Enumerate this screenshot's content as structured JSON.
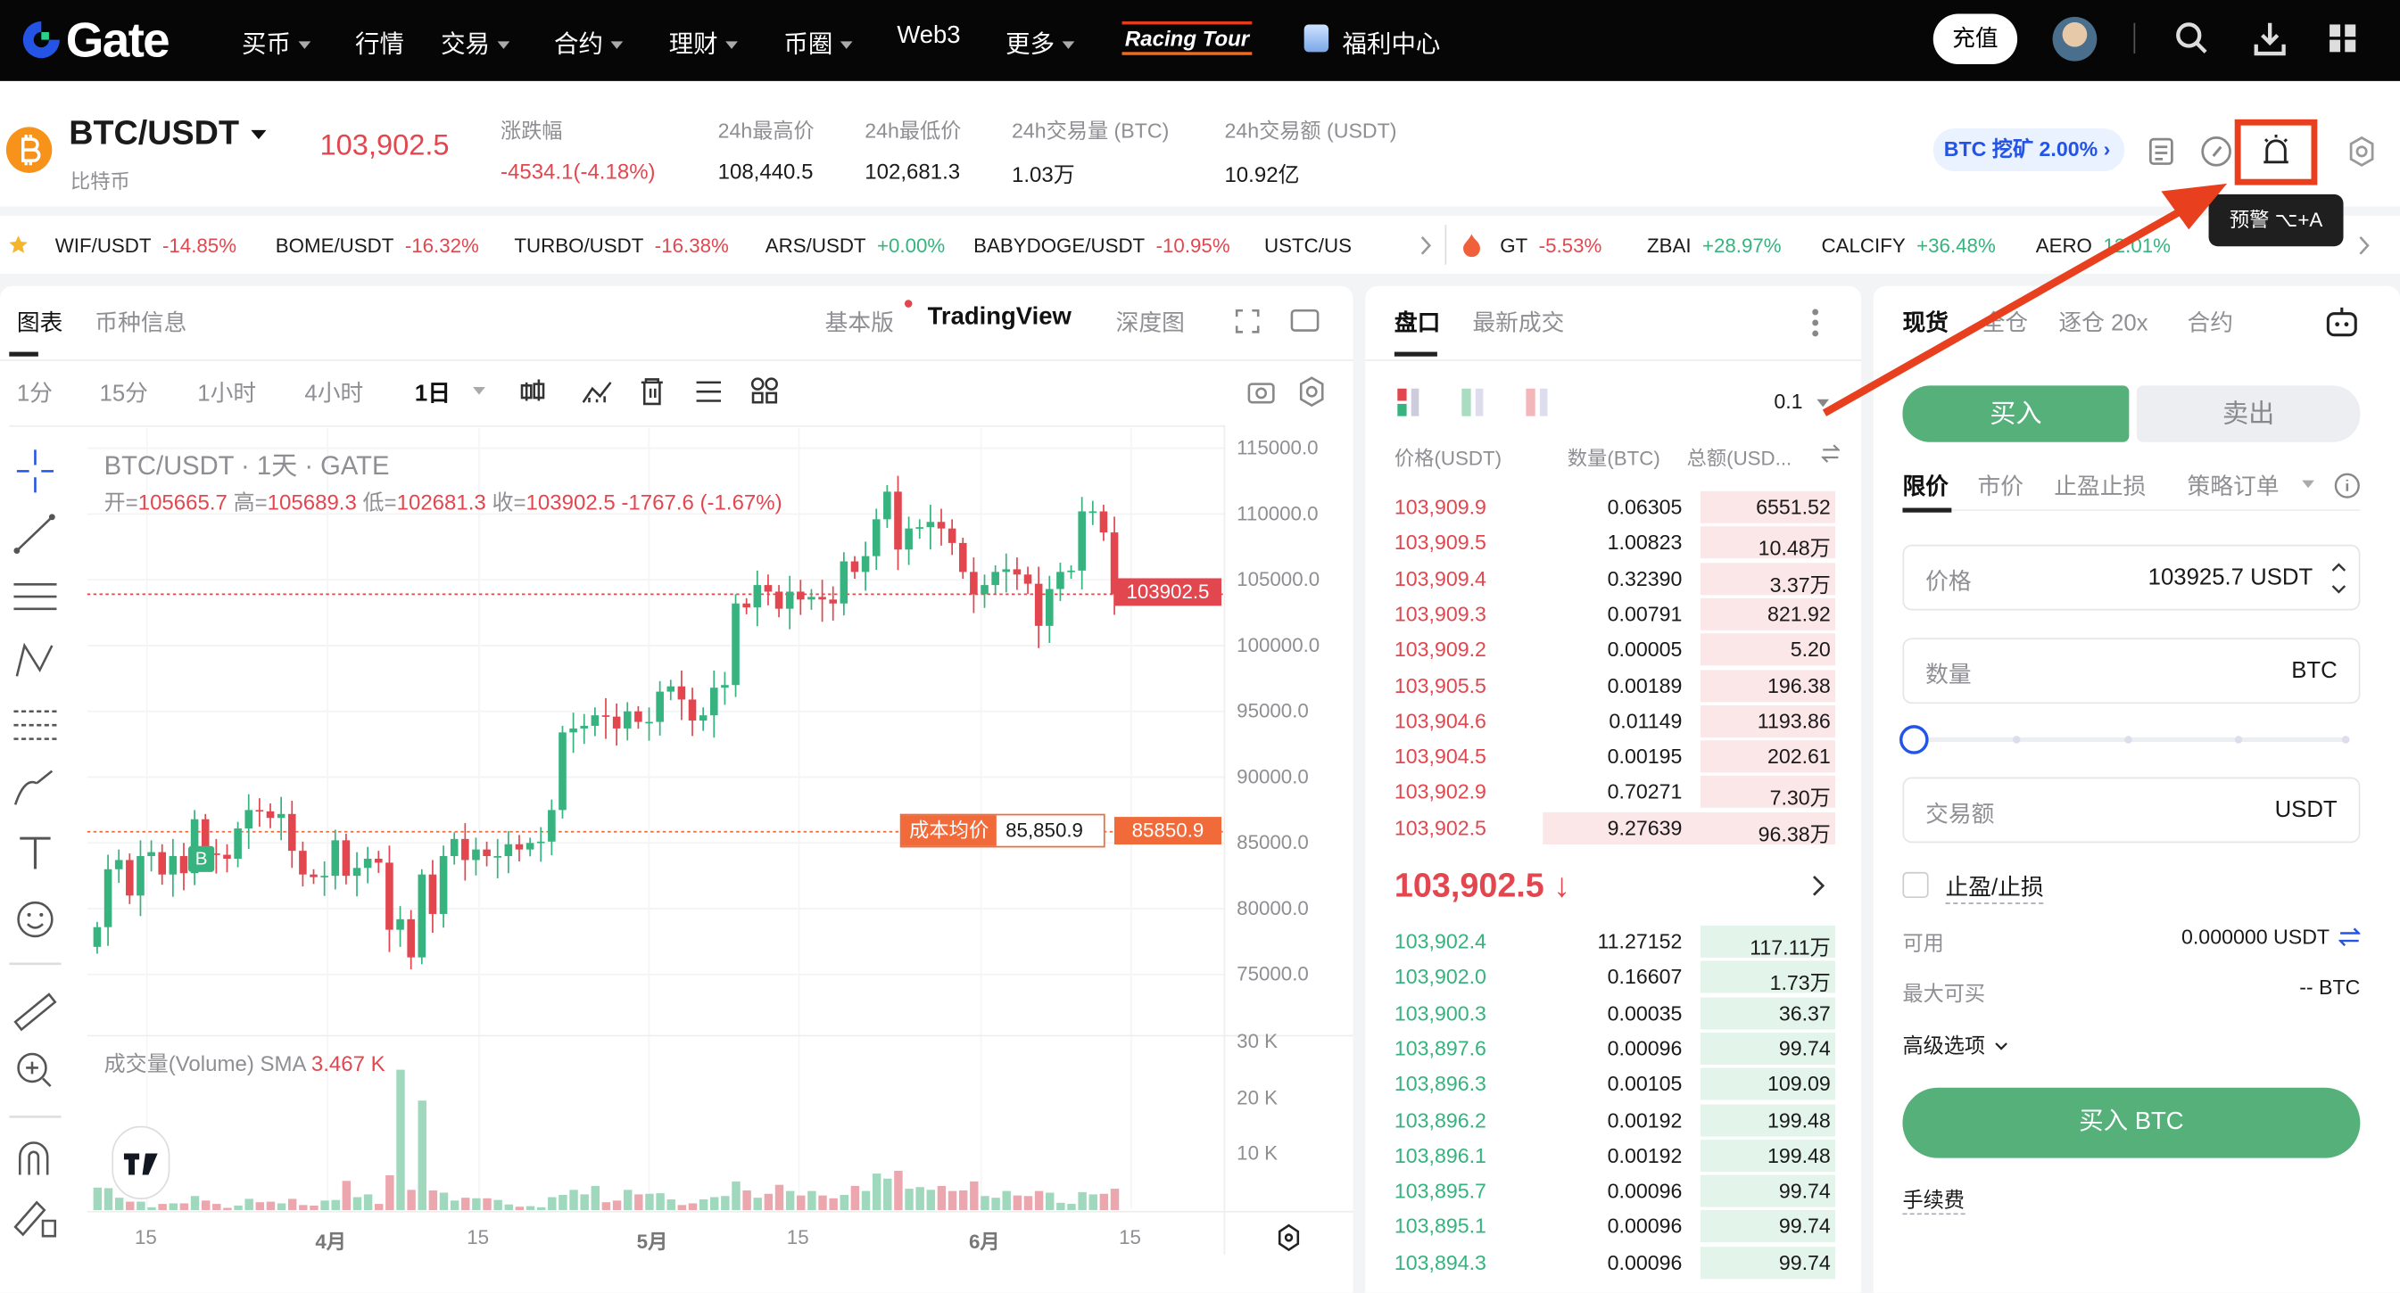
{
  "nav": {
    "logo": "Gate",
    "items": [
      {
        "label": "买币",
        "caret": true
      },
      {
        "label": "行情",
        "caret": false
      },
      {
        "label": "交易",
        "caret": true
      },
      {
        "label": "合约",
        "caret": true
      },
      {
        "label": "理财",
        "caret": true
      },
      {
        "label": "币圈",
        "caret": true
      },
      {
        "label": "Web3",
        "caret": false
      },
      {
        "label": "更多",
        "caret": true
      }
    ],
    "racing": "Racing Tour",
    "welfare": "福利中心",
    "deposit": "充值"
  },
  "ticker": {
    "pair": "BTC/USDT",
    "name": "比特币",
    "price": "103,902.5",
    "change_label": "涨跌幅",
    "change": "-4534.1(-4.18%)",
    "stats": [
      {
        "label": "24h最高价",
        "value": "108,440.5"
      },
      {
        "label": "24h最低价",
        "value": "102,681.3"
      },
      {
        "label": "24h交易量 (BTC)",
        "value": "1.03万"
      },
      {
        "label": "24h交易额 (USDT)",
        "value": "10.92亿"
      }
    ],
    "mining": "BTC 挖矿 2.00%",
    "tooltip": "预警 ⌥+A"
  },
  "marquee": {
    "fav": [
      {
        "pair": "WIF/USDT",
        "chg": "-14.85%",
        "up": false
      },
      {
        "pair": "BOME/USDT",
        "chg": "-16.32%",
        "up": false
      },
      {
        "pair": "TURBO/USDT",
        "chg": "-16.38%",
        "up": false
      },
      {
        "pair": "ARS/USDT",
        "chg": "+0.00%",
        "up": true
      },
      {
        "pair": "BABYDOGE/USDT",
        "chg": "-10.95%",
        "up": false
      },
      {
        "pair": "USTC/US",
        "chg": "",
        "up": false
      }
    ],
    "hot": [
      {
        "pair": "GT",
        "chg": "-5.53%",
        "up": false
      },
      {
        "pair": "ZBAI",
        "chg": "+28.97%",
        "up": true
      },
      {
        "pair": "CALCIFY",
        "chg": "+36.48%",
        "up": true
      },
      {
        "pair": "AERO",
        "chg": "12.01%",
        "up": true
      }
    ]
  },
  "chart": {
    "tabs": [
      "图表",
      "币种信息"
    ],
    "views": [
      "基本版",
      "TradingView",
      "深度图"
    ],
    "intervals": [
      "1分",
      "15分",
      "1小时",
      "4小时",
      "1日"
    ],
    "title": "BTC/USDT · 1天 · GATE",
    "ohlc": {
      "o_label": "开=",
      "o": "105665.7",
      "h_label": "高=",
      "h": "105689.3",
      "l_label": "低=",
      "l": "102681.3",
      "c_label": "收=",
      "c": "103902.5",
      "chg": "-1767.6 (-1.67%)"
    },
    "price_ticks": [
      "115000.0",
      "110000.0",
      "105000.0",
      "100000.0",
      "95000.0",
      "90000.0",
      "85000.0",
      "80000.0",
      "75000.0"
    ],
    "last_price_tag": "103902.5",
    "cost_label": "成本均价",
    "cost_value": "85,850.9",
    "cost_tag": "85850.9",
    "buy_marker": "B",
    "volume_label": "成交量(Volume) SMA",
    "volume_sma": "3.467 K",
    "volume_ticks": [
      "30 K",
      "20 K",
      "10 K"
    ],
    "time_ticks": [
      "15",
      "4月",
      "15",
      "5月",
      "15",
      "6月",
      "15"
    ],
    "closes": [
      78.6,
      83.0,
      83.7,
      81.0,
      84.0,
      84.3,
      82.6,
      84.0,
      82.7,
      86.8,
      84.2,
      84.1,
      83.8,
      86.1,
      87.5,
      87.4,
      86.9,
      87.2,
      84.4,
      82.6,
      82.4,
      82.5,
      85.2,
      82.5,
      83.1,
      83.8,
      83.5,
      78.4,
      79.2,
      76.3,
      82.6,
      79.6,
      84.0,
      85.3,
      83.7,
      84.5,
      84.0,
      84.0,
      84.9,
      84.5,
      85.0,
      85.1,
      87.5,
      93.4,
      93.7,
      93.9,
      94.7,
      94.6,
      93.7,
      95.0,
      94.2,
      94.2,
      96.5,
      96.9,
      95.9,
      94.3,
      94.7,
      96.8,
      97.0,
      103.2,
      102.9,
      104.6,
      104.1,
      102.8,
      104.1,
      103.5,
      103.7,
      103.5,
      103.2,
      106.4,
      105.6,
      106.8,
      109.6,
      111.7,
      107.3,
      108.9,
      109.0,
      109.4,
      108.9,
      107.8,
      105.6,
      103.9,
      104.6,
      105.6,
      105.8,
      105.4,
      104.7,
      101.5,
      104.3,
      105.6,
      105.7,
      110.2,
      110.2,
      108.6,
      103.9
    ],
    "volumes": [
      4.0,
      3.9,
      2.2,
      1.5,
      1.5,
      0.5,
      1.1,
      1.2,
      1.2,
      2.5,
      1.7,
      1.1,
      0.4,
      0.8,
      2.0,
      1.4,
      1.5,
      1.2,
      2.0,
      0.9,
      0.8,
      1.7,
      1.8,
      5.2,
      2.3,
      2.8,
      1.1,
      6.2,
      25,
      3.6,
      19.5,
      3.5,
      3.1,
      1.7,
      2.2,
      2.1,
      2.1,
      1.8,
      1.0,
      0.6,
      0.7,
      0.5,
      2.3,
      2.7,
      3.6,
      2.8,
      4.3,
      1.4,
      1.7,
      3.6,
      2.8,
      2.9,
      3.0,
      1.9,
      0.9,
      1.2,
      1.9,
      2.3,
      2.5,
      5.1,
      3.5,
      2.2,
      2.9,
      4.5,
      3.4,
      2.6,
      3.4,
      2.6,
      2.1,
      2.7,
      4.3,
      3.4,
      6.5,
      5.6,
      7.0,
      3.8,
      4.1,
      3.6,
      4.3,
      3.4,
      3.5,
      5.1,
      2.5,
      2.2,
      3.4,
      2.6,
      2.5,
      3.4,
      3.1,
      1.3,
      1.1,
      3.2,
      2.8,
      2.9,
      3.8,
      1.8
    ]
  },
  "orderbook": {
    "tabs": [
      "盘口",
      "最新成交"
    ],
    "precision": "0.1",
    "headers": [
      "价格(USDT)",
      "数量(BTC)",
      "总额(USD..."
    ],
    "asks": [
      [
        "103,909.9",
        "0.06305",
        "6551.52",
        0.3
      ],
      [
        "103,909.5",
        "1.00823",
        "10.48万",
        0.3
      ],
      [
        "103,909.4",
        "0.32390",
        "3.37万",
        0.3
      ],
      [
        "103,909.3",
        "0.00791",
        "821.92",
        0.3
      ],
      [
        "103,909.2",
        "0.00005",
        "5.20",
        0.3
      ],
      [
        "103,905.5",
        "0.00189",
        "196.38",
        0.3
      ],
      [
        "103,904.6",
        "0.01149",
        "1193.86",
        0.3
      ],
      [
        "103,904.5",
        "0.00195",
        "202.61",
        0.3
      ],
      [
        "103,902.9",
        "0.70271",
        "7.30万",
        0.3
      ],
      [
        "103,902.5",
        "9.27639",
        "96.38万",
        0.65
      ]
    ],
    "mid": "103,902.5 ↓",
    "bids": [
      [
        "103,902.4",
        "11.27152",
        "117.11万",
        0.3
      ],
      [
        "103,902.0",
        "0.16607",
        "1.73万",
        0.3
      ],
      [
        "103,900.3",
        "0.00035",
        "36.37",
        0.3
      ],
      [
        "103,897.6",
        "0.00096",
        "99.74",
        0.3
      ],
      [
        "103,896.3",
        "0.00105",
        "109.09",
        0.3
      ],
      [
        "103,896.2",
        "0.00192",
        "199.48",
        0.3
      ],
      [
        "103,896.1",
        "0.00192",
        "199.48",
        0.3
      ],
      [
        "103,895.7",
        "0.00096",
        "99.74",
        0.3
      ],
      [
        "103,895.1",
        "0.00096",
        "99.74",
        0.3
      ],
      [
        "103,894.3",
        "0.00096",
        "99.74",
        0.3
      ]
    ]
  },
  "trade": {
    "tabs": [
      "现货",
      "全仓",
      "逐仓 20x",
      "合约"
    ],
    "buy": "买入",
    "sell": "卖出",
    "order_types": [
      "限价",
      "市价",
      "止盈止损",
      "策略订单"
    ],
    "price_label": "价格",
    "price_value": "103925.7 USDT",
    "qty_label": "数量",
    "qty_unit": "BTC",
    "slider": 0,
    "amount_label": "交易额",
    "amount_unit": "USDT",
    "tpsl": "止盈/止损",
    "avail_label": "可用",
    "avail_value": "0.000000 USDT",
    "max_label": "最大可买",
    "max_value": "-- BTC",
    "advanced": "高级选项",
    "submit": "买入 BTC",
    "fee": "手续费"
  },
  "colors": {
    "up": "#36b37e",
    "down": "#e2474f",
    "buy_button": "#55b07a",
    "accent": "#2354e6",
    "annotation": "#e8401e"
  }
}
